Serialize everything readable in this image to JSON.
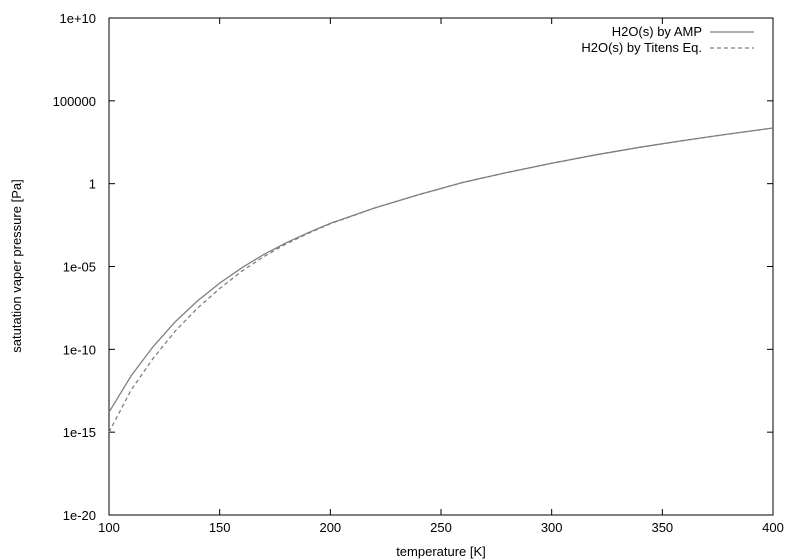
{
  "chart_data": {
    "type": "line",
    "xlabel": "temperature [K]",
    "ylabel": "satutation vaper pressure [Pa]",
    "xlim": [
      100,
      400
    ],
    "ylim": [
      1e-20,
      10000000000.0
    ],
    "yscale": "log",
    "grid": false,
    "legend_position": "top-right",
    "xticks": [
      {
        "value": 100,
        "label": "100"
      },
      {
        "value": 150,
        "label": "150"
      },
      {
        "value": 200,
        "label": "200"
      },
      {
        "value": 250,
        "label": "250"
      },
      {
        "value": 300,
        "label": "300"
      },
      {
        "value": 350,
        "label": "350"
      },
      {
        "value": 400,
        "label": "400"
      }
    ],
    "yticks": [
      {
        "value": 1e-20,
        "label": "1e-20"
      },
      {
        "value": 1e-15,
        "label": "1e-15"
      },
      {
        "value": 1e-10,
        "label": "1e-10"
      },
      {
        "value": 1e-05,
        "label": "1e-05"
      },
      {
        "value": 1,
        "label": "1"
      },
      {
        "value": 100000,
        "label": "100000"
      },
      {
        "value": 10000000000.0,
        "label": "1e+10"
      }
    ],
    "series": [
      {
        "name": "H2O(s) by AMP",
        "color": "#808080",
        "dash": "solid",
        "x": [
          100,
          110,
          120,
          130,
          140,
          150,
          160,
          170,
          180,
          190,
          200,
          220,
          240,
          260,
          280,
          300,
          320,
          340,
          360,
          380,
          400
        ],
        "y": [
          1.6e-14,
          2.5e-12,
          1.5e-10,
          4.7e-09,
          8.4e-08,
          1e-06,
          8.4e-06,
          5.4e-05,
          0.00027,
          0.0011,
          0.004,
          0.034,
          0.22,
          1.2,
          4.8,
          17,
          55,
          160,
          410,
          1000,
          2300
        ]
      },
      {
        "name": "H2O(s) by Titens Eq.",
        "color": "#808080",
        "dash": "dashed",
        "x": [
          100,
          110,
          120,
          130,
          140,
          150,
          160,
          170,
          180,
          190,
          200,
          220,
          240,
          260,
          280,
          300,
          320,
          340,
          360,
          380,
          400
        ],
        "y": [
          1e-15,
          3.5e-13,
          2.9e-11,
          1.3e-09,
          3.1e-08,
          4.7e-07,
          5.2e-06,
          4e-05,
          0.00023,
          0.001,
          0.0038,
          0.034,
          0.22,
          1.2,
          4.8,
          17,
          55,
          160,
          410,
          1000,
          2300
        ]
      }
    ]
  }
}
